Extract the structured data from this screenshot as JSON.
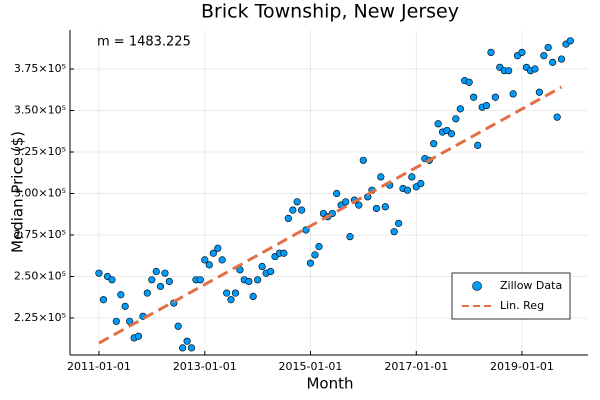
{
  "chart_data": {
    "type": "scatter",
    "title": "Brick Township, New Jersey",
    "x_label": "Month",
    "y_label": "Median Price ($)",
    "annotation": "m = 1483.225",
    "xlim": [
      "2010-06-15",
      "2020-04-01"
    ],
    "xticks": [
      "2011-01-01",
      "2013-01-01",
      "2015-01-01",
      "2017-01-01",
      "2019-01-01"
    ],
    "ylim": [
      202700,
      398500
    ],
    "yticks": [
      {
        "value": 225000,
        "label": "2.25×10⁵"
      },
      {
        "value": 250000,
        "label": "2.50×10⁵"
      },
      {
        "value": 275000,
        "label": "2.75×10⁵"
      },
      {
        "value": 300000,
        "label": "3.00×10⁵"
      },
      {
        "value": 325000,
        "label": "3.25×10⁵"
      },
      {
        "value": 350000,
        "label": "3.50×10⁵"
      },
      {
        "value": 375000,
        "label": "3.75×10⁵"
      }
    ],
    "grid": true,
    "legend": "bottom right",
    "series": [
      {
        "name": "Zillow Data",
        "type": "scatter",
        "color": "#009af9",
        "x": [
          "2011-01-01",
          "2011-02-01",
          "2011-03-01",
          "2011-04-01",
          "2011-05-01",
          "2011-06-01",
          "2011-07-01",
          "2011-08-01",
          "2011-09-01",
          "2011-10-01",
          "2011-11-01",
          "2011-12-01",
          "2012-01-01",
          "2012-02-01",
          "2012-03-01",
          "2012-04-01",
          "2012-05-01",
          "2012-06-01",
          "2012-07-01",
          "2012-08-01",
          "2012-09-01",
          "2012-10-01",
          "2012-11-01",
          "2012-12-01",
          "2013-01-01",
          "2013-02-01",
          "2013-03-01",
          "2013-04-01",
          "2013-05-01",
          "2013-06-01",
          "2013-07-01",
          "2013-08-01",
          "2013-09-01",
          "2013-10-01",
          "2013-11-01",
          "2013-12-01",
          "2014-01-01",
          "2014-02-01",
          "2014-03-01",
          "2014-04-01",
          "2014-05-01",
          "2014-06-01",
          "2014-07-01",
          "2014-08-01",
          "2014-09-01",
          "2014-10-01",
          "2014-11-01",
          "2014-12-01",
          "2015-01-01",
          "2015-02-01",
          "2015-03-01",
          "2015-04-01",
          "2015-05-01",
          "2015-06-01",
          "2015-07-01",
          "2015-08-01",
          "2015-09-01",
          "2015-10-01",
          "2015-11-01",
          "2015-12-01",
          "2016-01-01",
          "2016-02-01",
          "2016-03-01",
          "2016-04-01",
          "2016-05-01",
          "2016-06-01",
          "2016-07-01",
          "2016-08-01",
          "2016-09-01",
          "2016-10-01",
          "2016-11-01",
          "2016-12-01",
          "2017-01-01",
          "2017-02-01",
          "2017-03-01",
          "2017-04-01",
          "2017-05-01",
          "2017-06-01",
          "2017-07-01",
          "2017-08-01",
          "2017-09-01",
          "2017-10-01",
          "2017-11-01",
          "2017-12-01",
          "2018-01-01",
          "2018-02-01",
          "2018-03-01",
          "2018-04-01",
          "2018-05-01",
          "2018-06-01",
          "2018-07-01",
          "2018-08-01",
          "2018-09-01",
          "2018-10-01",
          "2018-11-01",
          "2018-12-01",
          "2019-01-01",
          "2019-02-01",
          "2019-03-01",
          "2019-04-01",
          "2019-05-01",
          "2019-06-01",
          "2019-07-01",
          "2019-08-01",
          "2019-09-01",
          "2019-10-01",
          "2019-11-01",
          "2019-12-01"
        ],
        "values": [
          252000,
          236000,
          250000,
          248000,
          223000,
          239000,
          232000,
          223000,
          213000,
          214000,
          226000,
          240000,
          248000,
          253000,
          244000,
          252000,
          247000,
          234000,
          220000,
          207000,
          211000,
          207000,
          248000,
          248000,
          260000,
          257000,
          264000,
          267000,
          260000,
          240000,
          236000,
          240000,
          254000,
          248000,
          247000,
          238000,
          248000,
          256000,
          252000,
          253000,
          262000,
          264000,
          264000,
          285000,
          290000,
          295000,
          290000,
          278000,
          258000,
          263000,
          268000,
          288000,
          286000,
          288000,
          300000,
          293000,
          295000,
          274000,
          296000,
          293000,
          320000,
          298000,
          302000,
          291000,
          310000,
          292000,
          305000,
          277000,
          282000,
          303000,
          302000,
          310000,
          304000,
          306000,
          321000,
          320000,
          330000,
          342000,
          337000,
          338000,
          336000,
          345000,
          351000,
          368000,
          367000,
          358000,
          329000,
          352000,
          353000,
          385000,
          358000,
          376000,
          374000,
          374000,
          360000,
          383000,
          385000,
          376000,
          374000,
          375000,
          361000,
          383000,
          388000,
          379000,
          346000,
          381000,
          390000,
          392000
        ]
      },
      {
        "name": "Lin. Reg",
        "type": "line",
        "color": "#e26f46",
        "x": [
          "2011-01-01",
          "2019-10-01"
        ],
        "values": [
          209900,
          364100
        ]
      }
    ]
  }
}
